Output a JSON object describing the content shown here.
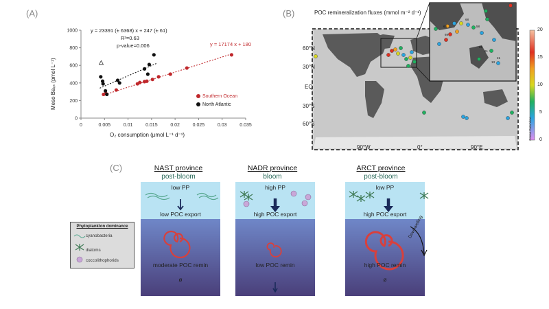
{
  "panel_a": {
    "letter": "(A)",
    "equation_black": "y = 23391 (± 6368) x + 247 (± 61)",
    "r2": "R²=0.63",
    "pvalue": "p-value=0.006",
    "equation_red": "y = 17174 x + 180",
    "ylabel": "Meso Baₓₛ (pmol L⁻¹)",
    "xlabel": "O₂ consumption (μmol L⁻¹ d⁻¹)",
    "legend_southern": "Southern Ocean",
    "legend_north": "North Atlantic",
    "colors": {
      "southern": "#c0282c",
      "north": "#111111"
    }
  },
  "chart_data": {
    "type": "scatter",
    "xlim": [
      0,
      0.035
    ],
    "ylim": [
      0,
      1000
    ],
    "xticks": [
      "0",
      "0.005",
      "0.01",
      "0.015",
      "0.02",
      "0.025",
      "0.03",
      "0.035"
    ],
    "yticks": [
      "0",
      "200",
      "400",
      "600",
      "800",
      "1000"
    ],
    "series": [
      {
        "name": "Southern Ocean",
        "x": [
          0.0048,
          0.0053,
          0.0075,
          0.012,
          0.0125,
          0.0135,
          0.014,
          0.0152,
          0.0165,
          0.019,
          0.0225,
          0.032
        ],
        "y": [
          270,
          280,
          320,
          390,
          405,
          415,
          420,
          440,
          470,
          500,
          570,
          720
        ]
      },
      {
        "name": "North Atlantic",
        "x": [
          0.0042,
          0.0046,
          0.0047,
          0.0052,
          0.0055,
          0.0078,
          0.0082,
          0.0135,
          0.0142,
          0.0145,
          0.0155
        ],
        "y": [
          470,
          420,
          390,
          310,
          270,
          430,
          400,
          560,
          500,
          610,
          720
        ]
      },
      {
        "name": "",
        "x": [
          0.0043
        ],
        "y": [
          630
        ]
      }
    ],
    "fit_black": {
      "slope": 23391,
      "intercept": 247,
      "xrange": [
        0.004,
        0.016
      ]
    },
    "fit_red": {
      "slope": 17174,
      "intercept": 180,
      "xrange": [
        0.0045,
        0.032
      ]
    }
  },
  "panel_b": {
    "letter": "(B)",
    "title": "POC remineralization fluxes (mmol m⁻² d⁻¹)",
    "lat_labels": [
      "60°N",
      "30°N",
      "EQ",
      "30°S",
      "60°S"
    ],
    "lon_labels": [
      "90°W",
      "0°",
      "90°E"
    ],
    "colorbar_ticks": [
      "20",
      "15",
      "10",
      "5",
      "0"
    ],
    "colorbar_credit": "Ocean Data View",
    "inset_labels": [
      "64",
      "69",
      "68",
      "58",
      "26",
      "61",
      "13",
      "21"
    ]
  },
  "panel_c": {
    "letter": "(C)",
    "provinces": [
      {
        "name": "NAST province",
        "season": "post-bloom",
        "pp": "low PP",
        "export": "low POC export",
        "remin": "moderate POC remin",
        "bottom": "ø"
      },
      {
        "name": "NADR province",
        "season": "bloom",
        "pp": "high PP",
        "export": "high POC export",
        "remin": "low POC remin",
        "bottom": ""
      },
      {
        "name": "ARCT province",
        "season": "post-bloom",
        "pp": "low PP",
        "export": "high POC export",
        "remin": "high POC remin",
        "bottom": "ø"
      }
    ],
    "downwelling": "Downwelling",
    "legend": {
      "title": "Phytoplankton dominance",
      "items": [
        "cyanobacteria",
        "diatoms",
        "coccolithophorids"
      ]
    }
  }
}
